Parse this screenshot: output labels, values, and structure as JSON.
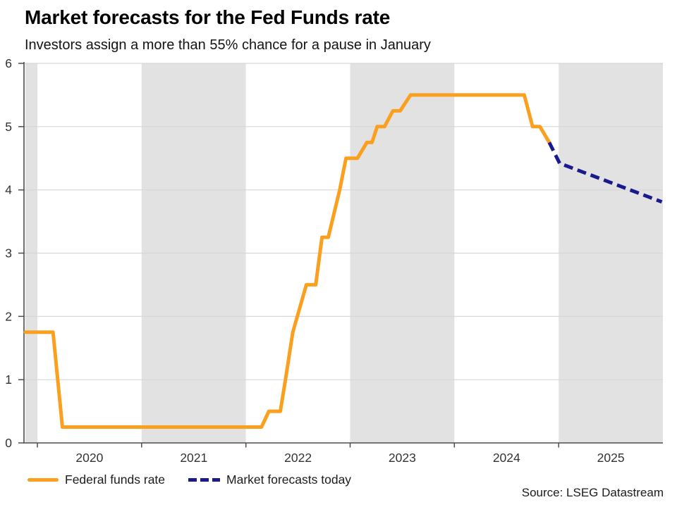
{
  "chart_data": {
    "type": "line",
    "title": "Market forecasts for the Fed Funds rate",
    "subtitle": "Investors assign a more than 55% chance for a pause in January",
    "source": "Source: LSEG Datastream",
    "xlabel": "",
    "ylabel": "",
    "x_domain": [
      2019.885,
      2026.0
    ],
    "ylim": [
      0,
      6
    ],
    "y_ticks": [
      0,
      1,
      2,
      3,
      4,
      5,
      6
    ],
    "x_tick_years": [
      2020,
      2021,
      2022,
      2023,
      2024,
      2025
    ],
    "grid": "horizontal",
    "legend_position": "bottom-left",
    "shaded_year_bands": [
      [
        2019.885,
        2020
      ],
      [
        2021,
        2022
      ],
      [
        2023,
        2024
      ],
      [
        2025,
        2026
      ]
    ],
    "colors": {
      "band": "#E2E2E2",
      "grid": "#D6D6D6",
      "axis": "#4D4D4D",
      "tick_text": "#333333"
    },
    "series": [
      {
        "name": "Federal funds rate",
        "color": "#FAA01E",
        "line_style": "solid",
        "points": [
          [
            2019.885,
            1.75
          ],
          [
            2020.15,
            1.75
          ],
          [
            2020.24,
            0.25
          ],
          [
            2022.15,
            0.25
          ],
          [
            2022.22,
            0.5
          ],
          [
            2022.33,
            0.5
          ],
          [
            2022.38,
            1.0
          ],
          [
            2022.45,
            1.75
          ],
          [
            2022.58,
            2.5
          ],
          [
            2022.67,
            2.5
          ],
          [
            2022.73,
            3.25
          ],
          [
            2022.79,
            3.25
          ],
          [
            2022.9,
            4.0
          ],
          [
            2022.96,
            4.5
          ],
          [
            2023.07,
            4.5
          ],
          [
            2023.16,
            4.75
          ],
          [
            2023.21,
            4.75
          ],
          [
            2023.26,
            5.0
          ],
          [
            2023.33,
            5.0
          ],
          [
            2023.41,
            5.25
          ],
          [
            2023.48,
            5.25
          ],
          [
            2023.58,
            5.5
          ],
          [
            2024.67,
            5.5
          ],
          [
            2024.75,
            5.0
          ],
          [
            2024.82,
            5.0
          ],
          [
            2024.91,
            4.75
          ]
        ]
      },
      {
        "name": "Market forecasts today",
        "color": "#1A1A8C",
        "line_style": "dashed",
        "points": [
          [
            2024.91,
            4.75
          ],
          [
            2025.01,
            4.42
          ],
          [
            2025.99,
            3.81
          ]
        ]
      }
    ]
  }
}
